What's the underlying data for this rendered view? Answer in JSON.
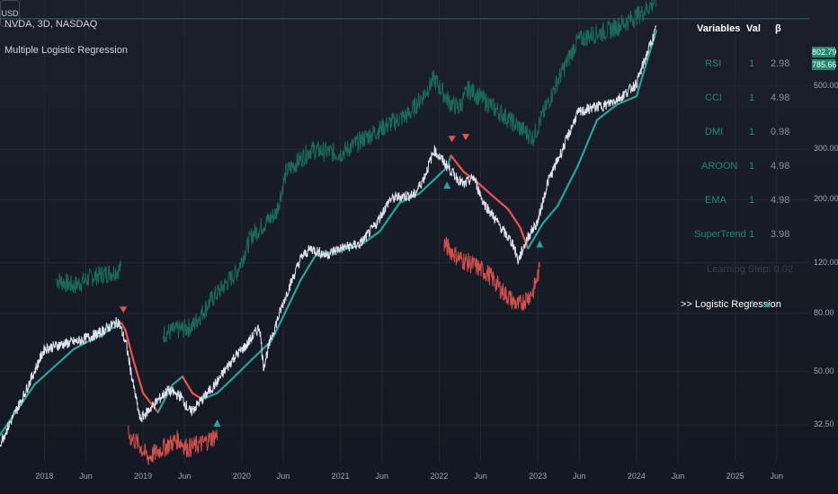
{
  "header": {
    "symbol": "NVDA, 3D, NASDAQ",
    "indicator": "Multiple Logistic Regression",
    "currency": "USD"
  },
  "price_labels": {
    "last_upper": "802.79",
    "last": "785.66"
  },
  "table": {
    "headers": [
      "Variables",
      "Val",
      "β"
    ],
    "rows": [
      {
        "name": "RSI",
        "val": "1",
        "beta": "2.98"
      },
      {
        "name": "CCI",
        "val": "1",
        "beta": "4.98"
      },
      {
        "name": "DMI",
        "val": "1",
        "beta": "0.98"
      },
      {
        "name": "AROON",
        "val": "1",
        "beta": "4.98"
      },
      {
        "name": "EMA",
        "val": "1",
        "beta": "4.98"
      },
      {
        "name": "SuperTrend",
        "val": "1",
        "beta": "3.98"
      }
    ],
    "learning_step": "Learning Step: 0.02",
    "result_label": ">> Logistic Regression",
    "result_val": "1",
    "result_arrow": "▲"
  },
  "chart_data": {
    "type": "line",
    "scale": "log",
    "x_ticks": [
      "2018",
      "Jun",
      "2019",
      "Jun",
      "2020",
      "Jun",
      "2021",
      "Jun",
      "2022",
      "Jun",
      "2023",
      "Jun",
      "2024",
      "Jun",
      "2025",
      "Jun"
    ],
    "y_ticks": [
      32.5,
      50,
      80,
      120,
      200,
      300,
      500
    ],
    "x_range": [
      2017.55,
      2025.75
    ],
    "y_range": [
      24,
      1000
    ],
    "series": [
      {
        "role": "price",
        "color": "#e0e3eb",
        "x": [
          2017.55,
          2017.8,
          2018.0,
          2018.15,
          2018.35,
          2018.55,
          2018.75,
          2018.83,
          2018.9,
          2018.97,
          2019.1,
          2019.25,
          2019.38,
          2019.48,
          2019.6,
          2019.75,
          2019.92,
          2020.05,
          2020.18,
          2020.22,
          2020.3,
          2020.45,
          2020.6,
          2020.7,
          2020.85,
          2021.0,
          2021.2,
          2021.35,
          2021.5,
          2021.6,
          2021.75,
          2021.85,
          2021.95,
          2022.05,
          2022.15,
          2022.25,
          2022.35,
          2022.45,
          2022.55,
          2022.65,
          2022.75,
          2022.8,
          2022.9,
          2023.0,
          2023.1,
          2023.25,
          2023.4,
          2023.55,
          2023.7,
          2023.85,
          2024.0,
          2024.1,
          2024.2
        ],
        "y": [
          28,
          42,
          60,
          62,
          64,
          68,
          75,
          62,
          45,
          34,
          38,
          43,
          41,
          36,
          40,
          46,
          56,
          62,
          72,
          52,
          66,
          93,
          125,
          135,
          128,
          135,
          140,
          162,
          200,
          205,
          208,
          240,
          298,
          270,
          245,
          225,
          240,
          195,
          175,
          155,
          140,
          122,
          148,
          168,
          230,
          300,
          400,
          420,
          430,
          460,
          510,
          640,
          790
        ]
      },
      {
        "role": "regression",
        "x": [
          2017.55,
          2017.9,
          2018.3,
          2018.6,
          2018.78,
          2018.82,
          2018.9,
          2019.0,
          2019.15,
          2019.3,
          2019.4,
          2019.5,
          2019.6,
          2019.75,
          2019.9,
          2020.1,
          2020.3,
          2020.45,
          2020.6,
          2020.75,
          2021.0,
          2021.2,
          2021.4,
          2021.6,
          2021.8,
          2021.95,
          2022.08,
          2022.12,
          2022.25,
          2022.4,
          2022.55,
          2022.7,
          2022.82,
          2022.9,
          2022.98,
          2023.05,
          2023.2,
          2023.4,
          2023.6,
          2023.8,
          2024.0,
          2024.1,
          2024.2
        ],
        "y": [
          30,
          45,
          60,
          68,
          74,
          70,
          55,
          42,
          36,
          45,
          48,
          42,
          40,
          42,
          47,
          55,
          64,
          82,
          105,
          128,
          133,
          138,
          155,
          195,
          210,
          235,
          260,
          285,
          250,
          228,
          205,
          185,
          160,
          135,
          150,
          165,
          190,
          260,
          380,
          430,
          460,
          600,
          780
        ]
      },
      {
        "role": "upper-band",
        "color": "#1a6b59",
        "x": [
          2018.12,
          2018.3,
          2018.5,
          2018.7,
          2018.78,
          2019.2,
          2019.5,
          2019.7,
          2019.95,
          2020.1,
          2020.35,
          2020.45,
          2020.7,
          2021.0,
          2021.25,
          2021.5,
          2021.7,
          2021.85,
          2021.95,
          2022.1,
          2022.2,
          2022.3,
          2022.95,
          2023.2,
          2023.4,
          2023.55,
          2023.7,
          2023.9,
          2024.05,
          2024.2
        ],
        "y": [
          105,
          100,
          108,
          112,
          115,
          68,
          72,
          90,
          112,
          150,
          180,
          250,
          300,
          290,
          330,
          370,
          400,
          470,
          530,
          440,
          420,
          490,
          330,
          520,
          720,
          760,
          780,
          840,
          900,
          1000
        ]
      },
      {
        "role": "lower-band",
        "color": "#d4504b",
        "x": [
          2018.85,
          2018.95,
          2019.05,
          2019.2,
          2019.35,
          2019.45,
          2019.6,
          2019.75,
          2022.05,
          2022.2,
          2022.35,
          2022.5,
          2022.65,
          2022.8,
          2022.95,
          2023.02
        ],
        "y": [
          30,
          28,
          25,
          27,
          29,
          27,
          28,
          30,
          140,
          125,
          118,
          110,
          95,
          85,
          95,
          115
        ]
      }
    ],
    "markers": [
      {
        "type": "sell",
        "x": 2018.8,
        "y": 82
      },
      {
        "type": "buy",
        "x": 2019.75,
        "y": 33
      },
      {
        "type": "buy",
        "x": 2022.08,
        "y": 225
      },
      {
        "type": "sell",
        "x": 2022.13,
        "y": 325
      },
      {
        "type": "sell",
        "x": 2022.27,
        "y": 330
      },
      {
        "type": "buy",
        "x": 2023.02,
        "y": 140
      }
    ],
    "reference_line_y": 860,
    "colors": {
      "bull": "#26a69a",
      "bear": "#ef5350",
      "grid": "#242832"
    }
  }
}
